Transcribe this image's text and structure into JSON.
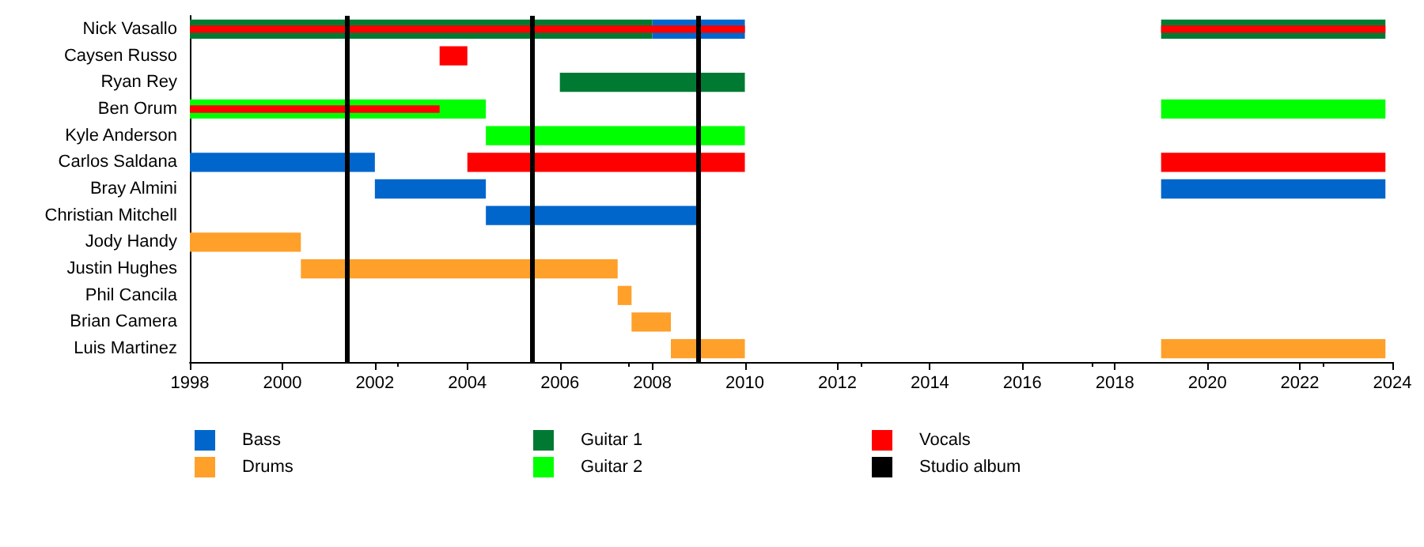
{
  "chart_data": {
    "type": "bar",
    "orientation": "horizontal",
    "legend": "bottom",
    "categories": [
      "Nick Vasallo",
      "Caysen Russo",
      "Ryan Rey",
      "Ben Orum",
      "Kyle Anderson",
      "Carlos Saldana",
      "Bray Almini",
      "Christian Mitchell",
      "Jody Handy",
      "Justin Hughes",
      "Phil Cancila",
      "Brian Camera",
      "Luis Martinez"
    ],
    "xlim": [
      1998,
      2024
    ],
    "xticks": [
      1998,
      2000,
      2002,
      2004,
      2006,
      2008,
      2010,
      2012,
      2014,
      2016,
      2018,
      2020,
      2022,
      2024
    ],
    "series": [
      {
        "name": "Bass",
        "color": "#0066cc",
        "base": [
          2008,
          null,
          null,
          null,
          null,
          1998,
          2002,
          2004.4,
          null,
          null,
          null,
          null,
          null
        ],
        "values": [
          2,
          null,
          null,
          null,
          null,
          4,
          2.4,
          4.6,
          null,
          null,
          null,
          null,
          null
        ]
      },
      {
        "name": "Drums",
        "color": "#ffa02a",
        "base": [
          null,
          null,
          null,
          null,
          null,
          null,
          null,
          null,
          1998,
          2000.4,
          2007.25,
          2007.55,
          2008.4
        ],
        "values": [
          null,
          null,
          null,
          null,
          null,
          null,
          null,
          null,
          2.4,
          6.85,
          0.3,
          0.85,
          1.6
        ]
      },
      {
        "name": "Guitar 1",
        "color": "#007a33",
        "base": [
          1998,
          null,
          2006,
          null,
          null,
          null,
          null,
          null,
          null,
          null,
          null,
          null,
          null
        ],
        "values": [
          10,
          null,
          4,
          null,
          null,
          null,
          null,
          null,
          null,
          null,
          null,
          null,
          null
        ]
      },
      {
        "name": "Guitar 2",
        "color": "#00ff00",
        "base": [
          null,
          null,
          null,
          1998,
          2004.4,
          null,
          null,
          null,
          null,
          null,
          null,
          null,
          null
        ],
        "values": [
          null,
          null,
          null,
          6.4,
          5.6,
          null,
          null,
          null,
          null,
          null,
          null,
          null,
          null
        ]
      },
      {
        "color": "#0066cc",
        "base": [
          null,
          null,
          null,
          null,
          null,
          null,
          2019,
          null,
          null,
          null,
          null,
          null,
          null
        ],
        "values": [
          null,
          null,
          null,
          null,
          null,
          null,
          4.85,
          null,
          null,
          null,
          null,
          null,
          null
        ]
      },
      {
        "color": "#ffa02a",
        "base": [
          null,
          null,
          null,
          null,
          null,
          null,
          null,
          null,
          null,
          null,
          null,
          null,
          2019
        ],
        "values": [
          null,
          null,
          null,
          null,
          null,
          null,
          null,
          null,
          null,
          null,
          null,
          null,
          4.85
        ]
      },
      {
        "color": "#007a33",
        "base": [
          2019,
          null,
          null,
          null,
          null,
          null,
          null,
          null,
          null,
          null,
          null,
          null,
          null
        ],
        "values": [
          4.85,
          null,
          null,
          null,
          null,
          null,
          null,
          null,
          null,
          null,
          null,
          null,
          null
        ]
      },
      {
        "color": "#00ff00",
        "base": [
          null,
          null,
          null,
          2019,
          null,
          null,
          null,
          null,
          null,
          null,
          null,
          null,
          null
        ],
        "values": [
          null,
          null,
          null,
          4.85,
          null,
          null,
          null,
          null,
          null,
          null,
          null,
          null,
          null
        ]
      },
      {
        "name": "Vocals",
        "color": "#ff0000",
        "base": [
          1998,
          2003.4,
          null,
          1998,
          null,
          2004,
          null,
          null,
          null,
          null,
          null,
          null,
          null
        ],
        "values": [
          12,
          0.6,
          null,
          5.4,
          null,
          6,
          null,
          null,
          null,
          null,
          null,
          null,
          null
        ]
      },
      {
        "color": "#ff0000",
        "base": [
          2019,
          null,
          null,
          null,
          null,
          2019,
          null,
          null,
          null,
          null,
          null,
          null,
          null
        ],
        "values": [
          4.85,
          null,
          null,
          null,
          null,
          4.85,
          null,
          null,
          null,
          null,
          null,
          null,
          null
        ]
      }
    ],
    "ref_lines": [
      {
        "axis": "x",
        "value": 2001.4,
        "label": "Studio album",
        "color": "#000000"
      },
      {
        "axis": "x",
        "value": 2005.4,
        "label": null,
        "color": "#000000"
      },
      {
        "axis": "x",
        "value": 2009.0,
        "label": null,
        "color": "#000000"
      }
    ]
  }
}
